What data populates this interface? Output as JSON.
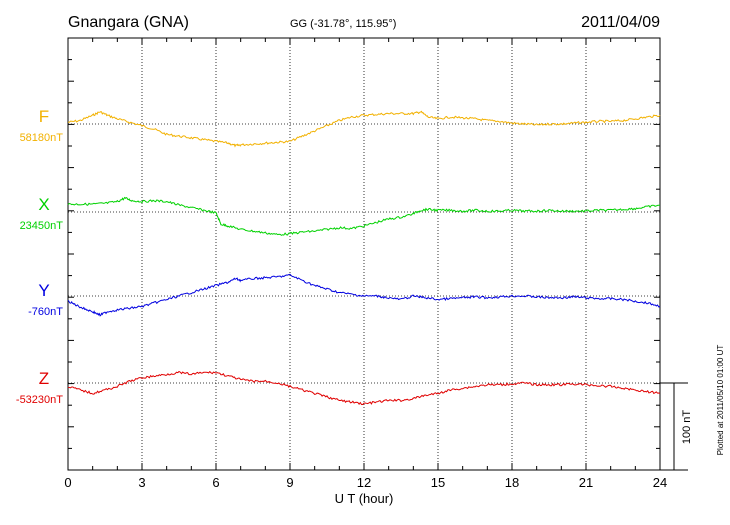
{
  "header": {
    "station": "Gnangara (GNA)",
    "coords": "GG (-31.78°, 115.95°)",
    "date": "2011/04/09"
  },
  "footer": {
    "plotted": "Plotted at 2011/05/10 01:00 UT"
  },
  "chart_data": {
    "type": "line",
    "xlabel": "U T (hour)",
    "xlim": [
      0,
      24
    ],
    "xticks": [
      "0",
      "3",
      "6",
      "9",
      "12",
      "15",
      "18",
      "21",
      "24"
    ],
    "scale_bar": {
      "label": "100 nT",
      "value_nT": 100
    },
    "grid": "dotted, at every 3 hours and at each baseline",
    "series": [
      {
        "name": "F",
        "baseline_label": "58180nT",
        "baseline_nT": 58180,
        "color": "#f2b100",
        "x": [
          0,
          0.5,
          1,
          1.3,
          1.6,
          2,
          2.5,
          3,
          3.5,
          4,
          4.5,
          5,
          5.5,
          6,
          6.5,
          6.8,
          7,
          7.5,
          8,
          8.5,
          9,
          9.5,
          10,
          10.5,
          11,
          11.5,
          12,
          12.5,
          13,
          13.5,
          14,
          14.3,
          14.6,
          15,
          15.5,
          16,
          16.5,
          17,
          17.5,
          18,
          18.5,
          19,
          19.5,
          20,
          20.5,
          21,
          21.5,
          22,
          22.5,
          23,
          23.5,
          24
        ],
        "values": [
          58182,
          58184,
          58190,
          58194,
          58190,
          58186,
          58182,
          58178,
          58174,
          58168,
          58166,
          58164,
          58162,
          58160,
          58158,
          58155,
          58156,
          58157,
          58158,
          58159,
          58160,
          58166,
          58172,
          58178,
          58184,
          58188,
          58190,
          58191,
          58192,
          58192,
          58192,
          58194,
          58188,
          58186,
          58188,
          58187,
          58186,
          58184,
          58183,
          58181,
          58180,
          58179,
          58180,
          58180,
          58181,
          58182,
          58183,
          58183,
          58184,
          58186,
          58188,
          58190
        ]
      },
      {
        "name": "X",
        "baseline_label": "23450nT",
        "baseline_nT": 23450,
        "color": "#00d100",
        "x": [
          0,
          0.5,
          1,
          1.5,
          2,
          2.3,
          2.6,
          3,
          3.5,
          4,
          4.5,
          5,
          5.5,
          6,
          6.2,
          6.5,
          7,
          7.5,
          8,
          8.5,
          9,
          9.5,
          10,
          10.5,
          11,
          11.5,
          12,
          12.5,
          13,
          13.5,
          14,
          14.3,
          14.6,
          15,
          15.5,
          16,
          16.5,
          17,
          17.5,
          18,
          18.5,
          19,
          19.5,
          20,
          20.5,
          21,
          21.5,
          22,
          22.5,
          23,
          23.5,
          24
        ],
        "values": [
          23459,
          23459,
          23459,
          23460,
          23462,
          23466,
          23463,
          23462,
          23463,
          23462,
          23458,
          23455,
          23452,
          23449,
          23436,
          23434,
          23430,
          23428,
          23426,
          23424,
          23425,
          23427,
          23428,
          23430,
          23432,
          23431,
          23434,
          23438,
          23442,
          23444,
          23448,
          23452,
          23453,
          23452,
          23452,
          23451,
          23452,
          23451,
          23451,
          23452,
          23451,
          23451,
          23452,
          23451,
          23451,
          23451,
          23452,
          23452,
          23453,
          23454,
          23456,
          23458
        ]
      },
      {
        "name": "Y",
        "baseline_label": "-760nT",
        "baseline_nT": -760,
        "color": "#0000e0",
        "x": [
          0,
          0.3,
          0.6,
          1,
          1.3,
          1.6,
          2,
          2.5,
          3,
          3.5,
          4,
          4.5,
          5,
          5.5,
          6,
          6.5,
          6.8,
          7,
          7.5,
          8,
          8.5,
          9,
          9.5,
          10,
          10.5,
          11,
          11.5,
          12,
          12.5,
          13,
          13.5,
          14,
          14.5,
          15,
          15.5,
          16,
          16.5,
          17,
          17.5,
          18,
          18.5,
          19,
          19.5,
          20,
          20.5,
          21,
          21.5,
          22,
          22.5,
          23,
          23.5,
          24
        ],
        "values": [
          -766,
          -770,
          -774,
          -778,
          -782,
          -778,
          -776,
          -774,
          -772,
          -768,
          -764,
          -760,
          -756,
          -752,
          -748,
          -744,
          -740,
          -742,
          -740,
          -739,
          -738,
          -736,
          -742,
          -748,
          -752,
          -756,
          -758,
          -760,
          -760,
          -762,
          -764,
          -760,
          -762,
          -764,
          -763,
          -762,
          -761,
          -762,
          -761,
          -760,
          -760,
          -761,
          -762,
          -762,
          -761,
          -762,
          -763,
          -763,
          -764,
          -766,
          -768,
          -772
        ]
      },
      {
        "name": "Z",
        "baseline_label": "-53230nT",
        "baseline_nT": -53230,
        "color": "#e00000",
        "x": [
          0,
          0.5,
          1,
          1.5,
          2,
          2.5,
          3,
          3.5,
          4,
          4.5,
          5,
          5.5,
          6,
          6.5,
          7,
          7.5,
          8,
          8.5,
          9,
          9.5,
          10,
          10.5,
          11,
          11.5,
          12,
          12.5,
          13,
          13.5,
          14,
          14.5,
          15,
          15.5,
          16,
          16.5,
          17,
          17.5,
          18,
          18.5,
          19,
          19.5,
          20,
          20.5,
          21,
          21.5,
          22,
          22.5,
          23,
          23.5,
          24
        ],
        "values": [
          -53234,
          -53238,
          -53242,
          -53238,
          -53234,
          -53228,
          -53224,
          -53222,
          -53220,
          -53218,
          -53220,
          -53218,
          -53218,
          -53222,
          -53226,
          -53228,
          -53228,
          -53230,
          -53234,
          -53238,
          -53242,
          -53246,
          -53250,
          -53252,
          -53254,
          -53252,
          -53250,
          -53250,
          -53248,
          -53244,
          -53242,
          -53238,
          -53236,
          -53234,
          -53232,
          -53232,
          -53231,
          -53230,
          -53232,
          -53232,
          -53232,
          -53231,
          -53232,
          -53233,
          -53234,
          -53236,
          -53238,
          -53240,
          -53242
        ]
      }
    ]
  }
}
